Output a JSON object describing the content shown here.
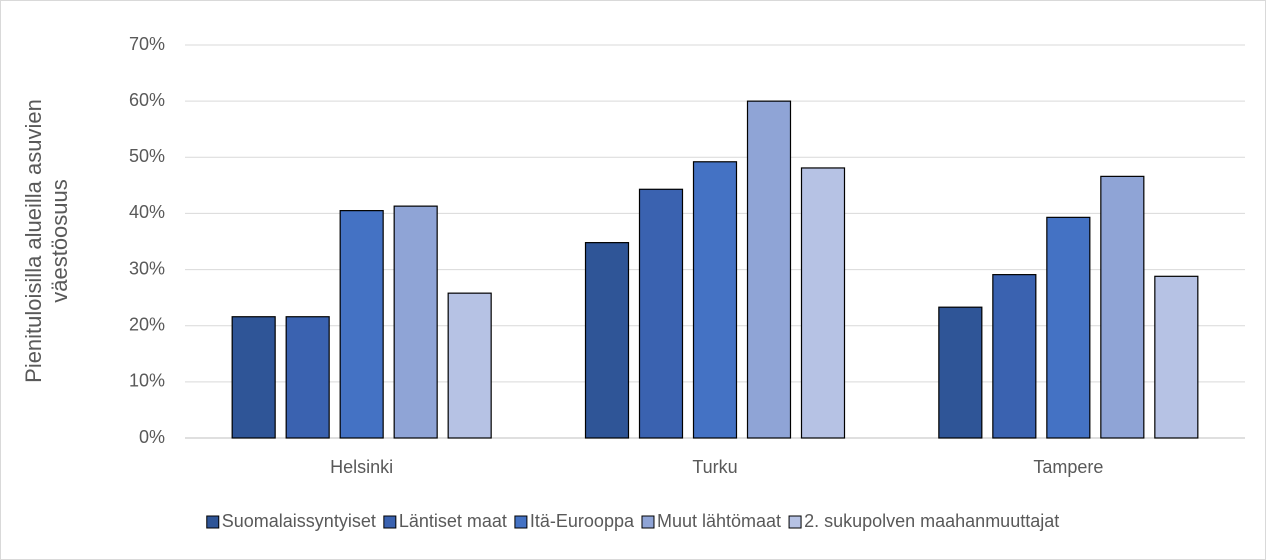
{
  "chart_data": {
    "type": "bar",
    "ylabel": [
      "Pienituloisilla alueilla asuvien",
      "väestöosuus"
    ],
    "categories": [
      "Helsinki",
      "Turku",
      "Tampere"
    ],
    "series": [
      {
        "name": "Suomalaissyntyiset",
        "color": "#2f5597",
        "values": [
          21.6,
          34.8,
          23.3
        ]
      },
      {
        "name": "Läntiset maat",
        "color": "#3a62b0",
        "values": [
          21.6,
          44.3,
          29.1
        ]
      },
      {
        "name": "Itä-Eurooppa",
        "color": "#4472c4",
        "values": [
          40.5,
          49.2,
          39.3
        ]
      },
      {
        "name": "Muut lähtömaat",
        "color": "#8fa4d6",
        "values": [
          41.3,
          60,
          46.6
        ]
      },
      {
        "name": "2. sukupolven maahanmuuttajat",
        "color": "#b6c2e4",
        "values": [
          25.8,
          48.1,
          28.8
        ]
      }
    ],
    "ylim": [
      0,
      70
    ],
    "yticks": [
      {
        "value": 0,
        "label": "0%"
      },
      {
        "value": 10,
        "label": "10%"
      },
      {
        "value": 20,
        "label": "20%"
      },
      {
        "value": 30,
        "label": "30%"
      },
      {
        "value": 40,
        "label": "40%"
      },
      {
        "value": 50,
        "label": "50%"
      },
      {
        "value": 60,
        "label": "60%"
      },
      {
        "value": 70,
        "label": "70%"
      }
    ],
    "grid": true,
    "legend": "bottom"
  }
}
